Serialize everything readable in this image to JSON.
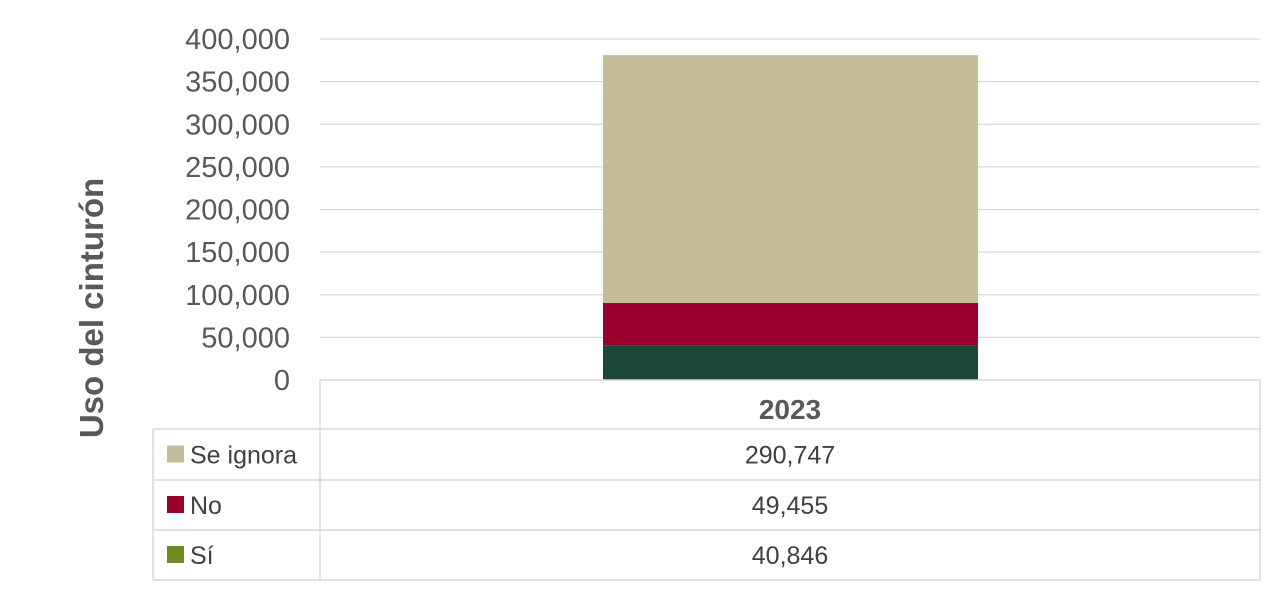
{
  "chart_data": {
    "type": "bar",
    "stacked": true,
    "categories": [
      "2023"
    ],
    "series": [
      {
        "name": "Sí",
        "values": [
          40846
        ],
        "color": "#1b4638",
        "legend_color": "#6b8e23"
      },
      {
        "name": "No",
        "values": [
          49455
        ],
        "color": "#98002e",
        "legend_color": "#98002e"
      },
      {
        "name": "Se ignora",
        "values": [
          290747
        ],
        "color": "#c4bd97",
        "legend_color": "#c4bd97"
      }
    ],
    "table_values": [
      "290,747",
      "49,455",
      "40,846"
    ],
    "ylabel": "Uso del cinturón",
    "ylim": [
      0,
      400000
    ],
    "yticks": [
      "0",
      "50,000",
      "100,000",
      "150,000",
      "200,000",
      "250,000",
      "300,000",
      "350,000",
      "400,000"
    ],
    "grid": true,
    "legend": "data-table-below"
  }
}
